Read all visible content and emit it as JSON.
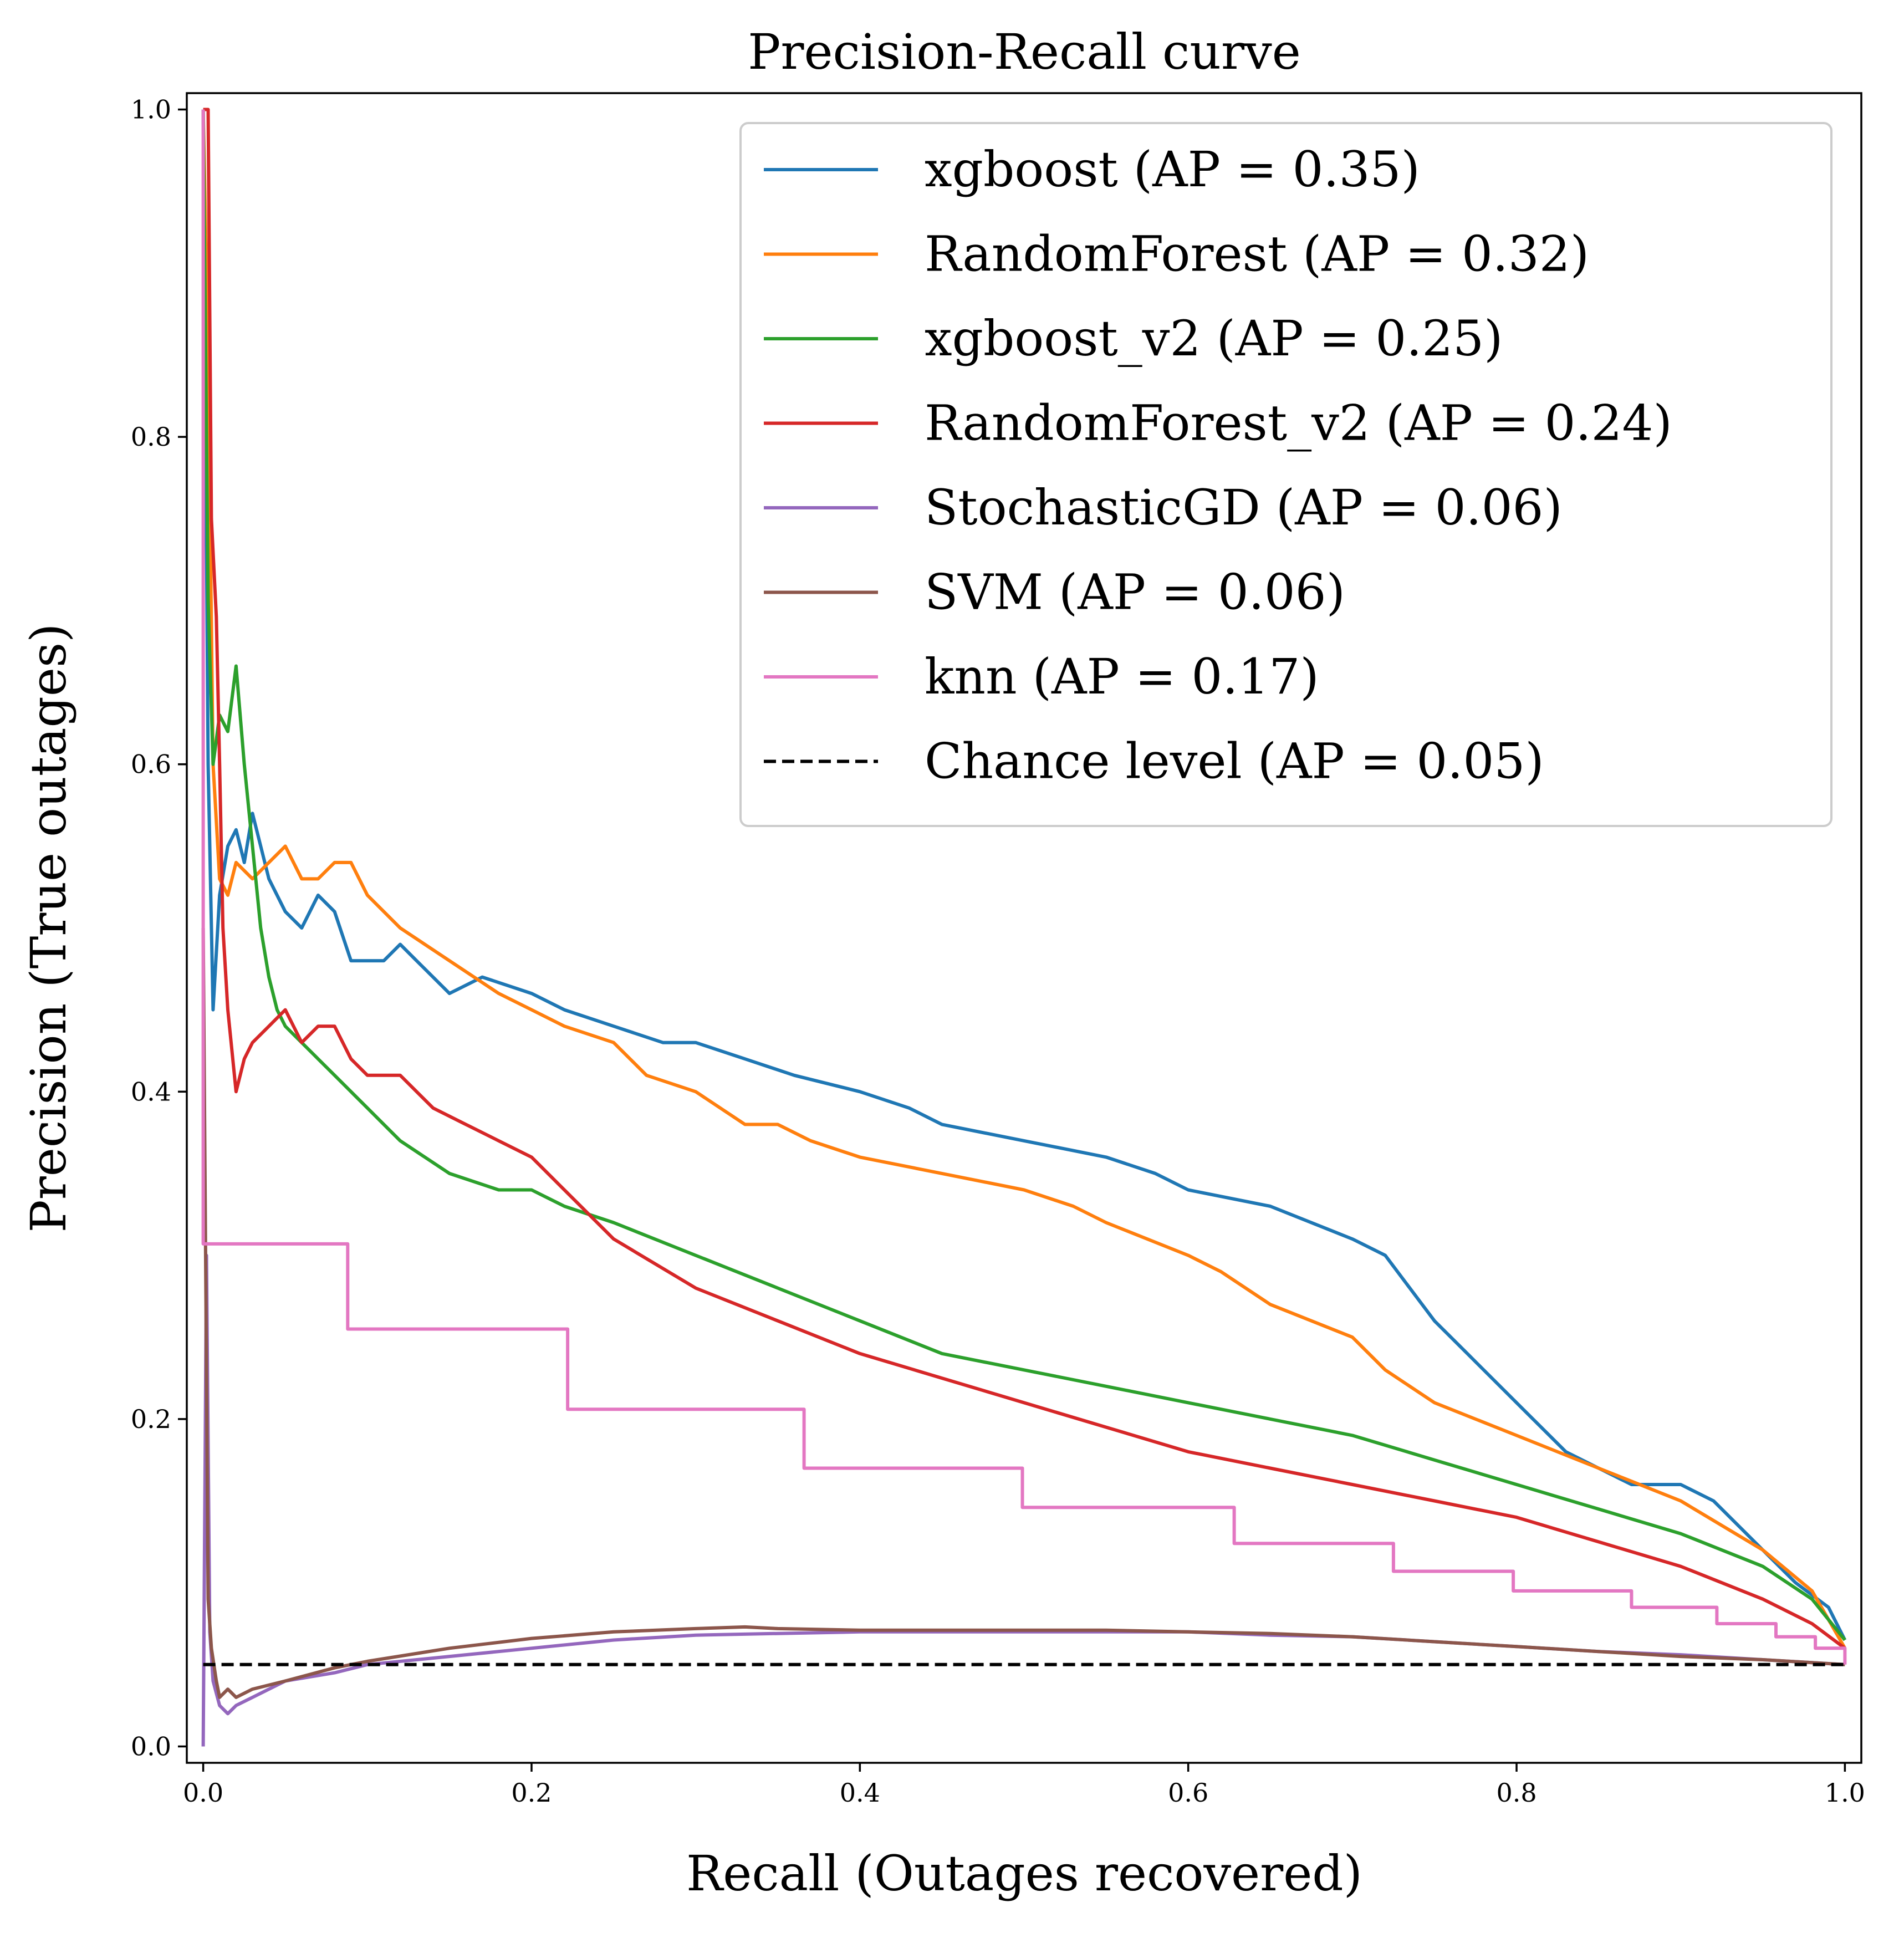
{
  "chart_data": {
    "type": "line",
    "title": "Precision-Recall curve",
    "xlabel": "Recall (Outages recovered)",
    "ylabel": "Precision (True outages)",
    "xlim": [
      -0.01,
      1.01
    ],
    "ylim": [
      -0.01,
      1.01
    ],
    "xticks": [
      0.0,
      0.2,
      0.4,
      0.6,
      0.8,
      1.0
    ],
    "yticks": [
      0.0,
      0.2,
      0.4,
      0.6,
      0.8,
      1.0
    ],
    "xtick_labels": [
      "0.0",
      "0.2",
      "0.4",
      "0.6",
      "0.8",
      "1.0"
    ],
    "ytick_labels": [
      "0.0",
      "0.2",
      "0.4",
      "0.6",
      "0.8",
      "1.0"
    ],
    "grid": false,
    "legend_position": "top-right",
    "series": [
      {
        "name": "xgboost (AP = 0.35)",
        "color": "#1f77b4",
        "style": "solid",
        "x": [
          0.0,
          0.003,
          0.006,
          0.01,
          0.015,
          0.02,
          0.025,
          0.03,
          0.04,
          0.05,
          0.06,
          0.07,
          0.08,
          0.09,
          0.1,
          0.11,
          0.12,
          0.13,
          0.14,
          0.15,
          0.17,
          0.2,
          0.22,
          0.25,
          0.28,
          0.3,
          0.33,
          0.36,
          0.4,
          0.43,
          0.45,
          0.5,
          0.55,
          0.58,
          0.6,
          0.65,
          0.7,
          0.72,
          0.75,
          0.77,
          0.8,
          0.83,
          0.85,
          0.87,
          0.9,
          0.92,
          0.95,
          0.97,
          0.99,
          1.0
        ],
        "y": [
          1.0,
          0.6,
          0.45,
          0.52,
          0.55,
          0.56,
          0.54,
          0.57,
          0.53,
          0.51,
          0.5,
          0.52,
          0.51,
          0.48,
          0.48,
          0.48,
          0.49,
          0.48,
          0.47,
          0.46,
          0.47,
          0.46,
          0.45,
          0.44,
          0.43,
          0.43,
          0.42,
          0.41,
          0.4,
          0.39,
          0.38,
          0.37,
          0.36,
          0.35,
          0.34,
          0.33,
          0.31,
          0.3,
          0.26,
          0.24,
          0.21,
          0.18,
          0.17,
          0.16,
          0.16,
          0.15,
          0.12,
          0.1,
          0.085,
          0.065
        ]
      },
      {
        "name": "RandomForest (AP = 0.32)",
        "color": "#ff7f0e",
        "style": "solid",
        "x": [
          0.0,
          0.003,
          0.006,
          0.01,
          0.015,
          0.02,
          0.03,
          0.04,
          0.05,
          0.06,
          0.07,
          0.08,
          0.09,
          0.1,
          0.12,
          0.15,
          0.18,
          0.2,
          0.22,
          0.25,
          0.27,
          0.3,
          0.33,
          0.35,
          0.37,
          0.4,
          0.45,
          0.5,
          0.53,
          0.55,
          0.6,
          0.62,
          0.65,
          0.7,
          0.72,
          0.75,
          0.8,
          0.85,
          0.9,
          0.95,
          0.98,
          1.0
        ],
        "y": [
          1.0,
          0.85,
          0.6,
          0.53,
          0.52,
          0.54,
          0.53,
          0.54,
          0.55,
          0.53,
          0.53,
          0.54,
          0.54,
          0.52,
          0.5,
          0.48,
          0.46,
          0.45,
          0.44,
          0.43,
          0.41,
          0.4,
          0.38,
          0.38,
          0.37,
          0.36,
          0.35,
          0.34,
          0.33,
          0.32,
          0.3,
          0.29,
          0.27,
          0.25,
          0.23,
          0.21,
          0.19,
          0.17,
          0.15,
          0.12,
          0.095,
          0.06
        ]
      },
      {
        "name": "xgboost_v2 (AP = 0.25)",
        "color": "#2ca02c",
        "style": "solid",
        "x": [
          0.0,
          0.003,
          0.006,
          0.01,
          0.015,
          0.02,
          0.025,
          0.03,
          0.035,
          0.04,
          0.045,
          0.05,
          0.06,
          0.07,
          0.08,
          0.09,
          0.1,
          0.12,
          0.15,
          0.18,
          0.2,
          0.22,
          0.25,
          0.3,
          0.35,
          0.4,
          0.45,
          0.5,
          0.55,
          0.6,
          0.65,
          0.7,
          0.75,
          0.8,
          0.85,
          0.9,
          0.95,
          0.98,
          1.0
        ],
        "y": [
          1.0,
          0.7,
          0.6,
          0.63,
          0.62,
          0.66,
          0.6,
          0.55,
          0.5,
          0.47,
          0.45,
          0.44,
          0.43,
          0.42,
          0.41,
          0.4,
          0.39,
          0.37,
          0.35,
          0.34,
          0.34,
          0.33,
          0.32,
          0.3,
          0.28,
          0.26,
          0.24,
          0.23,
          0.22,
          0.21,
          0.2,
          0.19,
          0.175,
          0.16,
          0.145,
          0.13,
          0.11,
          0.09,
          0.065
        ]
      },
      {
        "name": "RandomForest_v2 (AP = 0.24)",
        "color": "#d62728",
        "style": "solid",
        "x": [
          0.0,
          0.003,
          0.005,
          0.008,
          0.01,
          0.012,
          0.015,
          0.02,
          0.025,
          0.03,
          0.04,
          0.05,
          0.06,
          0.07,
          0.08,
          0.09,
          0.1,
          0.12,
          0.14,
          0.16,
          0.18,
          0.2,
          0.22,
          0.25,
          0.3,
          0.35,
          0.4,
          0.45,
          0.5,
          0.55,
          0.6,
          0.65,
          0.7,
          0.75,
          0.8,
          0.85,
          0.9,
          0.95,
          0.98,
          1.0
        ],
        "y": [
          1.0,
          1.0,
          0.75,
          0.69,
          0.6,
          0.5,
          0.45,
          0.4,
          0.42,
          0.43,
          0.44,
          0.45,
          0.43,
          0.44,
          0.44,
          0.42,
          0.41,
          0.41,
          0.39,
          0.38,
          0.37,
          0.36,
          0.34,
          0.31,
          0.28,
          0.26,
          0.24,
          0.225,
          0.21,
          0.195,
          0.18,
          0.17,
          0.16,
          0.15,
          0.14,
          0.125,
          0.11,
          0.09,
          0.075,
          0.06
        ]
      },
      {
        "name": "StochasticGD (AP = 0.06)",
        "color": "#9467bd",
        "style": "solid",
        "x": [
          0.0,
          0.002,
          0.004,
          0.006,
          0.01,
          0.015,
          0.02,
          0.03,
          0.05,
          0.08,
          0.1,
          0.15,
          0.2,
          0.25,
          0.3,
          0.35,
          0.4,
          0.45,
          0.5,
          0.55,
          0.6,
          0.65,
          0.7,
          0.75,
          0.8,
          0.85,
          0.9,
          0.95,
          1.0
        ],
        "y": [
          0.0,
          0.3,
          0.07,
          0.04,
          0.025,
          0.02,
          0.025,
          0.03,
          0.04,
          0.045,
          0.05,
          0.055,
          0.06,
          0.065,
          0.068,
          0.069,
          0.07,
          0.07,
          0.07,
          0.07,
          0.07,
          0.068,
          0.067,
          0.064,
          0.061,
          0.058,
          0.056,
          0.053,
          0.05
        ]
      },
      {
        "name": "SVM (AP = 0.06)",
        "color": "#8c564b",
        "style": "solid",
        "x": [
          0.0,
          0.003,
          0.005,
          0.008,
          0.01,
          0.015,
          0.02,
          0.03,
          0.05,
          0.08,
          0.1,
          0.15,
          0.2,
          0.25,
          0.3,
          0.33,
          0.35,
          0.4,
          0.45,
          0.5,
          0.55,
          0.6,
          0.65,
          0.7,
          0.75,
          0.8,
          0.85,
          0.9,
          0.95,
          1.0
        ],
        "y": [
          0.5,
          0.09,
          0.06,
          0.04,
          0.03,
          0.035,
          0.03,
          0.035,
          0.04,
          0.048,
          0.052,
          0.06,
          0.066,
          0.07,
          0.072,
          0.073,
          0.072,
          0.071,
          0.071,
          0.071,
          0.071,
          0.07,
          0.069,
          0.067,
          0.064,
          0.061,
          0.058,
          0.055,
          0.053,
          0.05
        ]
      },
      {
        "name": "knn (AP = 0.17)",
        "color": "#e377c2",
        "style": "step",
        "x": [
          0.0,
          0.0,
          0.088,
          0.088,
          0.222,
          0.222,
          0.366,
          0.366,
          0.499,
          0.499,
          0.628,
          0.628,
          0.725,
          0.725,
          0.798,
          0.798,
          0.87,
          0.87,
          0.922,
          0.922,
          0.958,
          0.958,
          0.982,
          0.982,
          1.0,
          1.0
        ],
        "y": [
          1.0,
          0.307,
          0.307,
          0.255,
          0.255,
          0.206,
          0.206,
          0.17,
          0.17,
          0.146,
          0.146,
          0.124,
          0.124,
          0.107,
          0.107,
          0.095,
          0.095,
          0.085,
          0.085,
          0.075,
          0.075,
          0.067,
          0.067,
          0.06,
          0.06,
          0.05
        ]
      },
      {
        "name": "Chance level (AP = 0.05)",
        "color": "#000000",
        "style": "dashed",
        "x": [
          0.0,
          1.0
        ],
        "y": [
          0.05,
          0.05
        ]
      }
    ]
  }
}
